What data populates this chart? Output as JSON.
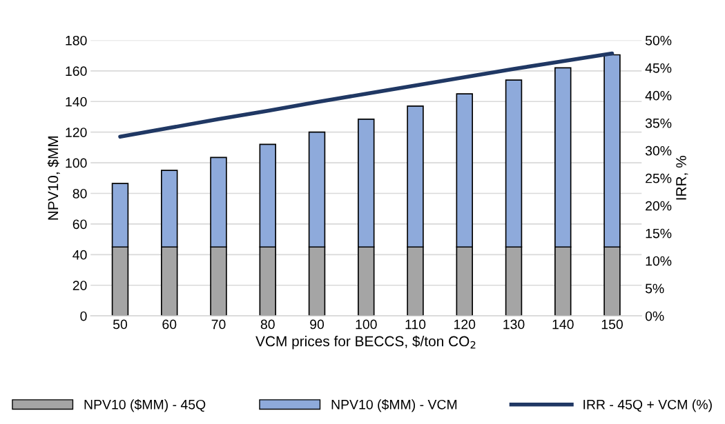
{
  "chart_data": {
    "type": "bar",
    "stacked": true,
    "xlabel": "VCM prices for BECCS, $/ton CO$_{2}$",
    "ylabel": "NPV10, $MM",
    "y2label": "IRR, %",
    "categories": [
      "50",
      "60",
      "70",
      "80",
      "90",
      "100",
      "110",
      "120",
      "130",
      "140",
      "150"
    ],
    "series": [
      {
        "name": "NPV10 ($MM) - 45Q",
        "color": "#a5a5a5",
        "values": [
          45,
          45,
          45,
          45,
          45,
          45,
          45,
          45,
          45,
          45,
          45
        ]
      },
      {
        "name": "NPV10 ($MM) - VCM",
        "color": "#8eaadb",
        "values": [
          41.5,
          50,
          58.5,
          67,
          75,
          83.5,
          92,
          100,
          109,
          117,
          125.5
        ]
      },
      {
        "name": "IRR - 45Q + VCM (%)",
        "type": "line",
        "axis": "y2",
        "color": "#203864",
        "values": [
          32.5,
          34.1,
          35.7,
          37.2,
          38.8,
          40.3,
          41.8,
          43.3,
          44.8,
          46.2,
          47.6
        ]
      }
    ],
    "ylim": [
      0,
      180
    ],
    "yticks": [
      0,
      20,
      40,
      60,
      80,
      100,
      120,
      140,
      160,
      180
    ],
    "y2lim": [
      0,
      50
    ],
    "y2ticks": [
      {
        "value": 0,
        "label": "0%"
      },
      {
        "value": 5,
        "label": "5%"
      },
      {
        "value": 10,
        "label": "10%"
      },
      {
        "value": 15,
        "label": "15%"
      },
      {
        "value": 20,
        "label": "20%"
      },
      {
        "value": 25,
        "label": "25%"
      },
      {
        "value": 30,
        "label": "30%"
      },
      {
        "value": 35,
        "label": "35%"
      },
      {
        "value": 40,
        "label": "40%"
      },
      {
        "value": 45,
        "label": "45%"
      },
      {
        "value": 50,
        "label": "50%"
      }
    ],
    "grid": "y",
    "legend": "bottom",
    "marker": "none",
    "line_style": "solid"
  }
}
